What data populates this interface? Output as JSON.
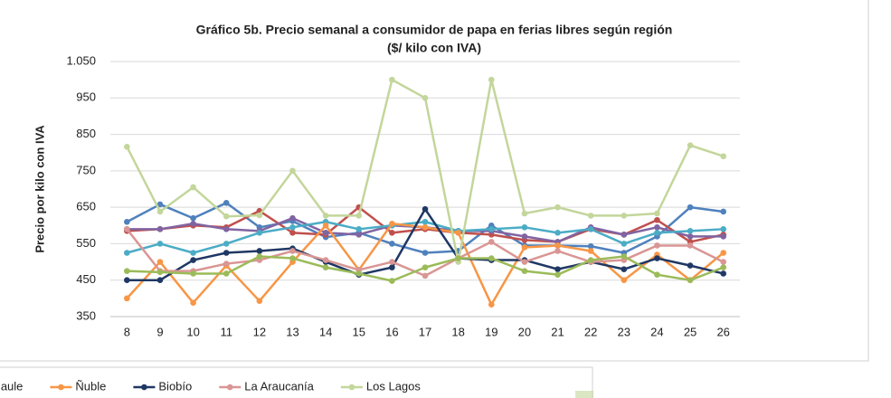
{
  "chart_data": {
    "type": "line",
    "title": "Gráfico 5b. Precio semanal a consumidor de papa en ferias libres según región",
    "subtitle": "($/ kilo con IVA)",
    "y_label": "Precio por kilo con IVA",
    "categories": [
      "8",
      "9",
      "10",
      "11",
      "12",
      "13",
      "14",
      "15",
      "16",
      "17",
      "18",
      "19",
      "20",
      "21",
      "22",
      "23",
      "24",
      "25",
      "26"
    ],
    "ylim": [
      350,
      1050
    ],
    "yticks": [
      350,
      450,
      550,
      650,
      750,
      850,
      950,
      {
        "value": 1050,
        "label": "1.050"
      }
    ],
    "grid": true,
    "series": [
      {
        "color": "#4f81bd",
        "values": [
          610,
          658,
          620,
          662,
          595,
          612,
          568,
          580,
          550,
          525,
          530,
          600,
          545,
          545,
          543,
          525,
          570,
          650,
          638
        ]
      },
      {
        "color": "#c0504d",
        "values": [
          585,
          590,
          600,
          595,
          640,
          580,
          575,
          650,
          580,
          590,
          580,
          575,
          560,
          555,
          590,
          575,
          615,
          555,
          575
        ]
      },
      {
        "color": "#8064a2",
        "values": [
          590,
          590,
          605,
          590,
          585,
          620,
          580,
          575,
          600,
          595,
          585,
          585,
          570,
          555,
          595,
          575,
          595,
          570,
          570
        ]
      },
      {
        "name": "Maule",
        "color": "#4bacc6",
        "values": [
          525,
          550,
          525,
          550,
          580,
          595,
          610,
          590,
          600,
          610,
          585,
          590,
          595,
          580,
          590,
          550,
          580,
          585,
          590
        ]
      },
      {
        "name": "Ñuble",
        "color": "#f79646",
        "values": [
          400,
          500,
          388,
          490,
          393,
          500,
          600,
          478,
          605,
          595,
          580,
          383,
          540,
          545,
          530,
          450,
          520,
          450,
          525
        ]
      },
      {
        "name": "Biobío",
        "color": "#1f3864",
        "values": [
          450,
          450,
          505,
          525,
          530,
          537,
          500,
          465,
          485,
          645,
          510,
          505,
          505,
          480,
          500,
          480,
          510,
          490,
          468
        ]
      },
      {
        "name": "La Araucanía",
        "color": "#d99694",
        "values": [
          590,
          475,
          475,
          495,
          505,
          530,
          505,
          478,
          500,
          462,
          510,
          555,
          500,
          530,
          500,
          505,
          545,
          545,
          500
        ]
      },
      {
        "name": "Los Lagos",
        "color": "#c3d69b",
        "values": [
          816,
          638,
          705,
          625,
          628,
          750,
          627,
          627,
          1000,
          950,
          500,
          1000,
          633,
          650,
          627,
          627,
          633,
          820,
          790
        ]
      },
      {
        "color": "#9bbb59",
        "values": [
          475,
          472,
          468,
          468,
          515,
          510,
          485,
          468,
          448,
          485,
          510,
          510,
          475,
          465,
          505,
          515,
          465,
          450,
          485
        ]
      }
    ]
  }
}
